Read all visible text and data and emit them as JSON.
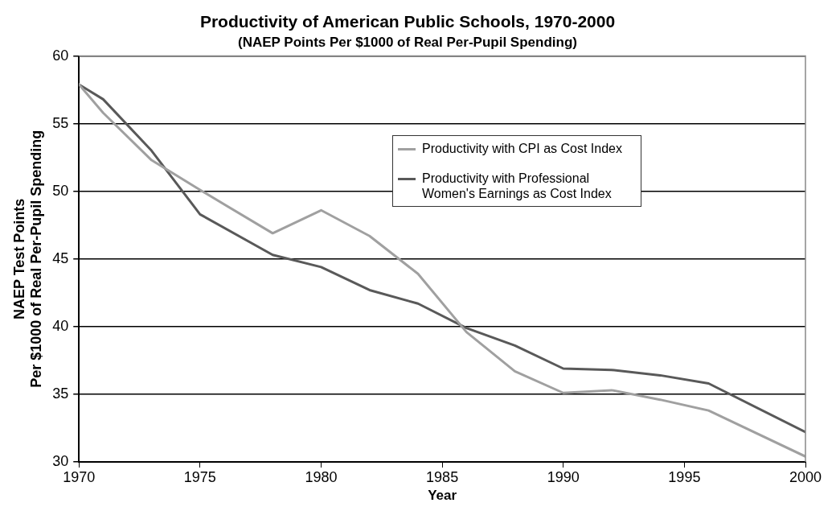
{
  "chart_data": {
    "type": "line",
    "title": "Productivity of American Public Schools, 1970-2000",
    "subtitle": "(NAEP Points Per $1000 of Real Per-Pupil Spending)",
    "xlabel": "Year",
    "ylabel": "NAEP Test Points\nPer $1000 of Real Per-Pupil Spending",
    "x": [
      1970,
      1971,
      1973,
      1975,
      1978,
      1980,
      1982,
      1984,
      1986,
      1988,
      1990,
      1992,
      1994,
      1996,
      2000
    ],
    "series": [
      {
        "name": "Productivity with CPI as Cost Index",
        "color": "#a0a0a0",
        "values": [
          57.9,
          55.8,
          52.3,
          50.1,
          46.9,
          48.6,
          46.7,
          43.9,
          39.6,
          36.7,
          35.1,
          35.3,
          34.6,
          33.8,
          30.4
        ]
      },
      {
        "name": "Productivity with Professional Women's Earnings as Cost Index",
        "color": "#595959",
        "values": [
          57.9,
          56.8,
          53.0,
          48.3,
          45.3,
          44.4,
          42.7,
          41.7,
          39.9,
          38.6,
          36.9,
          36.8,
          36.4,
          35.8,
          32.2
        ]
      }
    ],
    "xlim": [
      1970,
      2000
    ],
    "xticks": [
      1970,
      1975,
      1980,
      1985,
      1990,
      1995,
      2000
    ],
    "ylim": [
      30,
      60
    ],
    "yticks": [
      30,
      35,
      40,
      45,
      50,
      55,
      60
    ],
    "grid": "y",
    "legend": "top right",
    "marker": "none",
    "line_style": "solid"
  }
}
